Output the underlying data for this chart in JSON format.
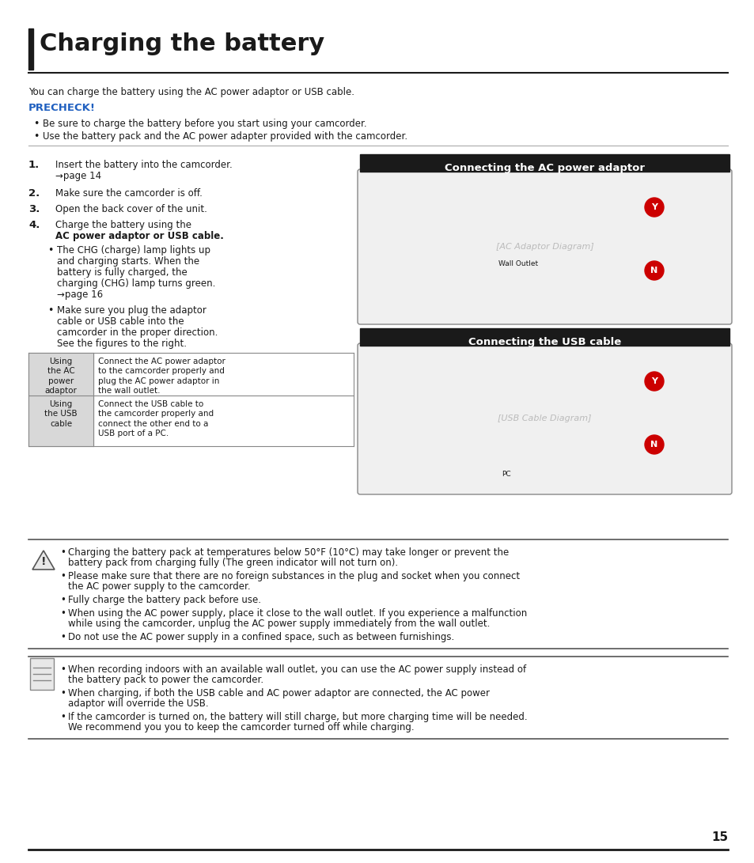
{
  "title": "Charging the battery",
  "page_num": "15",
  "bg_color": "#ffffff",
  "title_color": "#1a1a1a",
  "precheck_color": "#2060c0",
  "section_header_bg": "#1a1a1a",
  "section_header_text": "#ffffff",
  "body_text_color": "#1a1a1a",
  "body_font_size": 8.5,
  "title_font_size": 22,
  "intro_text": "You can charge the battery using the AC power adaptor or USB cable.",
  "precheck_label": "PRECHECK!",
  "precheck_bullets": [
    "Be sure to charge the battery before you start using your camcorder.",
    "Use the battery pack and the AC power adapter provided with the camcorder."
  ],
  "ac_section_title": "Connecting the AC power adaptor",
  "usb_section_title": "Connecting the USB cable",
  "table_col1": [
    "Using\nthe AC\npower\nadaptor",
    "Using\nthe USB\ncable"
  ],
  "table_col2": [
    "Connect the AC power adaptor\nto the camcorder properly and\nplug the AC power adaptor in\nthe wall outlet.",
    "Connect the USB cable to\nthe camcorder properly and\nconnect the other end to a\nUSB port of a PC."
  ],
  "warning_bullets": [
    "Charging the battery pack at temperatures below 50°F (10°C) may take longer or prevent the\nbattery pack from charging fully (The green indicator will not turn on).",
    "Please make sure that there are no foreign substances in the plug and socket when you connect\nthe AC power supply to the camcorder.",
    "Fully charge the battery pack before use.",
    "When using the AC power supply, place it close to the wall outlet. If you experience a malfunction\nwhile using the camcorder, unplug the AC power supply immediately from the wall outlet.",
    "Do not use the AC power supply in a confined space, such as between furnishings."
  ],
  "note_bullets": [
    "When recording indoors with an available wall outlet, you can use the AC power supply instead of\nthe battery pack to power the camcorder.",
    "When charging, if both the USB cable and AC power adaptor are connected, the AC power\nadaptor will override the USB.",
    "If the camcorder is turned on, the battery will still charge, but more charging time will be needed.\nWe recommend you you to keep the camcorder turned off while charging."
  ]
}
